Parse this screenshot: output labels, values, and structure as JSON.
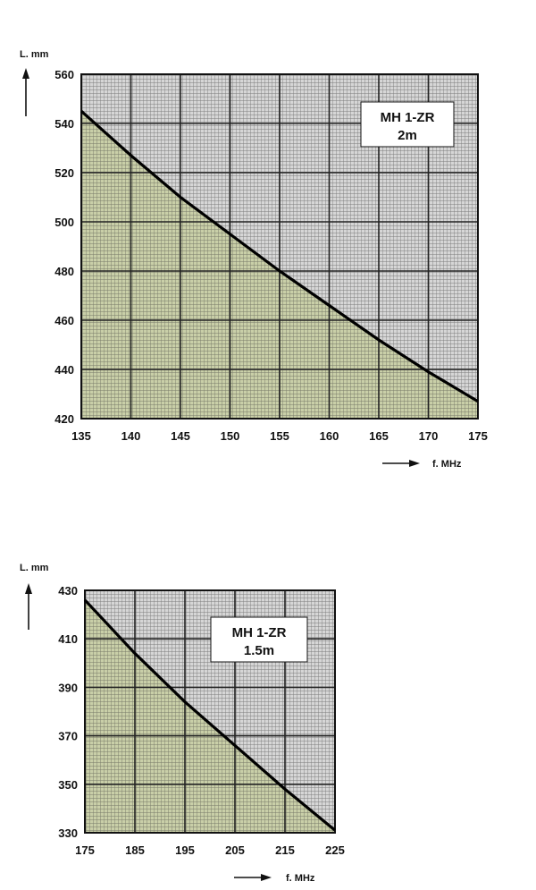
{
  "chart_data": [
    {
      "type": "line",
      "title_lines": [
        "MH 1-ZR",
        "2m"
      ],
      "xlabel": "f. MHz",
      "ylabel": "L. mm",
      "xlim": [
        135,
        175
      ],
      "ylim": [
        420,
        560
      ],
      "x_ticks": [
        135,
        140,
        145,
        150,
        155,
        160,
        165,
        170,
        175
      ],
      "y_ticks": [
        420,
        440,
        460,
        480,
        500,
        520,
        540,
        560
      ],
      "series": [
        {
          "x": [
            135,
            140,
            145,
            150,
            155,
            160,
            165,
            170,
            175
          ],
          "y": [
            545,
            527,
            510,
            495,
            480,
            466,
            452,
            439,
            427
          ]
        }
      ],
      "fill_below": true,
      "grid": true,
      "colors": {
        "fill": "#c9cfa8",
        "background": "#d6d6d6",
        "grid": "#222222",
        "line": "#000000"
      }
    },
    {
      "type": "line",
      "title_lines": [
        "MH 1-ZR",
        "1.5m"
      ],
      "xlabel": "f. MHz",
      "ylabel": "L. mm",
      "xlim": [
        175,
        225
      ],
      "ylim": [
        330,
        430
      ],
      "x_ticks": [
        175,
        185,
        195,
        205,
        215,
        225
      ],
      "y_ticks": [
        330,
        350,
        370,
        390,
        410,
        430
      ],
      "series": [
        {
          "x": [
            175,
            185,
            195,
            205,
            215,
            225
          ],
          "y": [
            426,
            404,
            384,
            366,
            348,
            331
          ]
        }
      ],
      "fill_below": true,
      "grid": true,
      "colors": {
        "fill": "#c9cfa8",
        "background": "#d6d6d6",
        "grid": "#222222",
        "line": "#000000"
      }
    }
  ]
}
